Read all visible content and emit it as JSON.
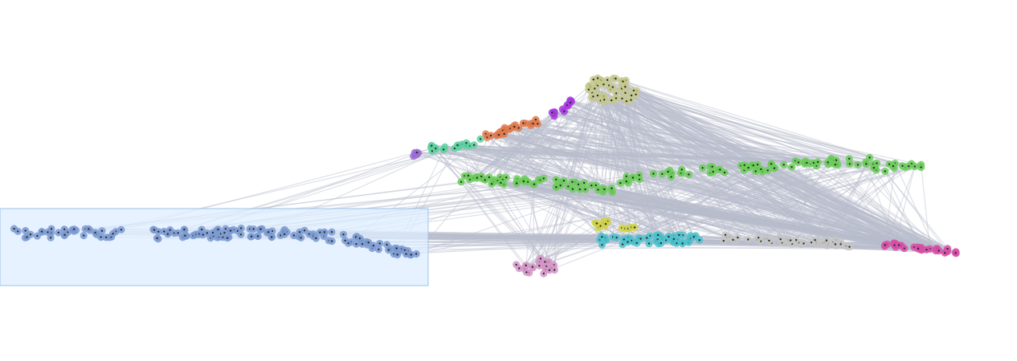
{
  "graph": {
    "edge_color": "#b8bccb",
    "core_color": "#2b2b2b",
    "selection_fill": "#ddeeff",
    "selection_stroke": "#9fc3ea",
    "clusters": [
      {
        "id": "blue",
        "color": "#7b9bd2"
      },
      {
        "id": "green",
        "color": "#6ccc5a"
      },
      {
        "id": "khaki",
        "color": "#c5c98d"
      },
      {
        "id": "violet",
        "color": "#a83ae0"
      },
      {
        "id": "orange",
        "color": "#e07a4c"
      },
      {
        "id": "teal",
        "color": "#5fd1a0"
      },
      {
        "id": "lavender",
        "color": "#9b6fd6"
      },
      {
        "id": "yellow",
        "color": "#cfd24a"
      },
      {
        "id": "cyan",
        "color": "#4cc2cc"
      },
      {
        "id": "gray",
        "color": "#c4c4c4"
      },
      {
        "id": "magenta",
        "color": "#d84fa8"
      },
      {
        "id": "pink",
        "color": "#d497c7"
      }
    ]
  }
}
